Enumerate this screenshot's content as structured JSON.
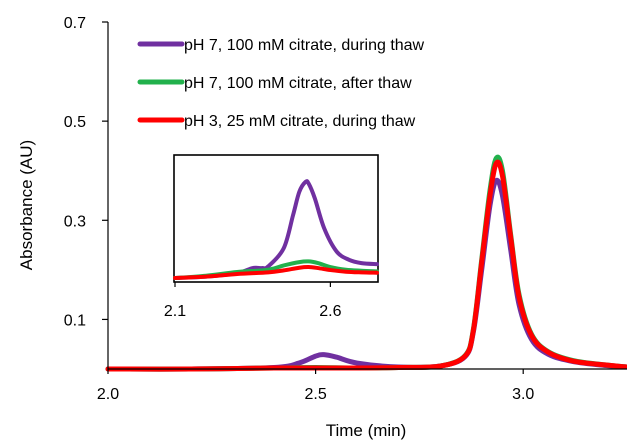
{
  "chart_data": {
    "type": "line",
    "xlabel": "Time (min)",
    "ylabel": "Absorbance (AU)",
    "xlim": [
      2.0,
      3.25
    ],
    "ylim": [
      0.0,
      0.7
    ],
    "x_ticks": [
      "2.0",
      "2.5",
      "3.0"
    ],
    "x_tick_values": [
      2.0,
      2.5,
      3.0
    ],
    "y_ticks": [
      "0.1",
      "0.3",
      "0.5",
      "0.7"
    ],
    "y_tick_values": [
      0.1,
      0.3,
      0.5,
      0.7
    ],
    "legend_position": "top-left",
    "series": [
      {
        "name": "pH 7, 100 mM citrate, during thaw",
        "color": "#7030A0",
        "x": [
          2.0,
          2.2,
          2.4,
          2.46,
          2.5,
          2.52,
          2.55,
          2.6,
          2.7,
          2.8,
          2.86,
          2.88,
          2.9,
          2.92,
          2.935,
          2.95,
          2.97,
          2.99,
          3.02,
          3.06,
          3.12,
          3.2,
          3.25
        ],
        "y": [
          0.0,
          0.0,
          0.003,
          0.012,
          0.026,
          0.029,
          0.024,
          0.012,
          0.004,
          0.006,
          0.025,
          0.075,
          0.2,
          0.33,
          0.38,
          0.35,
          0.24,
          0.13,
          0.06,
          0.03,
          0.015,
          0.007,
          0.004
        ]
      },
      {
        "name": "pH 7, 100 mM citrate, after thaw",
        "color": "#22B14C",
        "x": [
          2.0,
          2.2,
          2.4,
          2.5,
          2.6,
          2.7,
          2.8,
          2.86,
          2.88,
          2.9,
          2.92,
          2.935,
          2.95,
          2.97,
          2.99,
          3.02,
          3.06,
          3.12,
          3.2,
          3.25
        ],
        "y": [
          0.0,
          0.0,
          0.002,
          0.003,
          0.002,
          0.003,
          0.006,
          0.027,
          0.08,
          0.22,
          0.36,
          0.425,
          0.4,
          0.27,
          0.15,
          0.07,
          0.035,
          0.017,
          0.008,
          0.004
        ]
      },
      {
        "name": "pH 3, 25 mM citrate, during thaw",
        "color": "#FF0000",
        "x": [
          2.0,
          2.2,
          2.4,
          2.5,
          2.6,
          2.7,
          2.8,
          2.86,
          2.88,
          2.9,
          2.92,
          2.935,
          2.95,
          2.97,
          2.99,
          3.02,
          3.06,
          3.12,
          3.2,
          3.25
        ],
        "y": [
          0.0,
          0.0,
          0.002,
          0.002,
          0.002,
          0.003,
          0.006,
          0.026,
          0.078,
          0.215,
          0.35,
          0.415,
          0.39,
          0.265,
          0.145,
          0.068,
          0.034,
          0.016,
          0.008,
          0.004
        ]
      }
    ],
    "inset": {
      "xlim": [
        2.1,
        2.75
      ],
      "x_ticks": [
        "2.1",
        "2.6"
      ],
      "x_tick_values": [
        2.1,
        2.6
      ],
      "ylim": [
        0.0,
        0.035
      ],
      "series": [
        {
          "name": "pH 7, 100 mM citrate, during thaw",
          "color": "#7030A0",
          "x": [
            2.1,
            2.2,
            2.3,
            2.35,
            2.38,
            2.4,
            2.45,
            2.48,
            2.5,
            2.52,
            2.53,
            2.55,
            2.58,
            2.62,
            2.66,
            2.7,
            2.75
          ],
          "y": [
            0.0,
            0.0004,
            0.0015,
            0.003,
            0.003,
            0.0035,
            0.009,
            0.019,
            0.026,
            0.029,
            0.0285,
            0.024,
            0.015,
            0.008,
            0.0055,
            0.0045,
            0.0042
          ]
        },
        {
          "name": "pH 7, 100 mM citrate, after thaw",
          "color": "#22B14C",
          "x": [
            2.1,
            2.2,
            2.3,
            2.4,
            2.45,
            2.5,
            2.53,
            2.56,
            2.6,
            2.65,
            2.7,
            2.75
          ],
          "y": [
            0.0,
            0.0007,
            0.0018,
            0.0025,
            0.0038,
            0.0048,
            0.005,
            0.0045,
            0.0033,
            0.0025,
            0.0022,
            0.002
          ]
        },
        {
          "name": "pH 3, 25 mM citrate, during thaw",
          "color": "#FF0000",
          "x": [
            2.1,
            2.2,
            2.3,
            2.4,
            2.45,
            2.5,
            2.53,
            2.56,
            2.6,
            2.65,
            2.7,
            2.75
          ],
          "y": [
            0.0,
            0.0004,
            0.0012,
            0.0017,
            0.0023,
            0.0031,
            0.0033,
            0.003,
            0.0024,
            0.0019,
            0.0017,
            0.0016
          ]
        }
      ]
    }
  }
}
